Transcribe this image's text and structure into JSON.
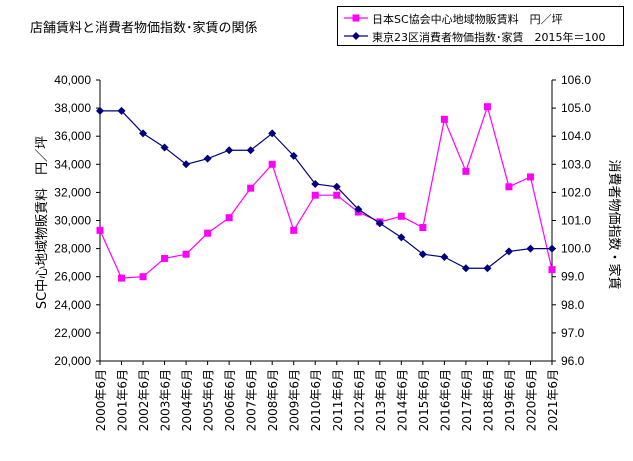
{
  "chart_data": {
    "type": "line",
    "title": "店舗賃料と消費者物価指数･家賃の関係",
    "categories": [
      "2000年6月",
      "2001年6月",
      "2002年6月",
      "2003年6月",
      "2004年6月",
      "2005年6月",
      "2006年6月",
      "2007年6月",
      "2008年6月",
      "2009年6月",
      "2010年6月",
      "2011年6月",
      "2012年6月",
      "2013年6月",
      "2014年6月",
      "2015年6月",
      "2016年6月",
      "2017年6月",
      "2018年6月",
      "2019年6月",
      "2020年6月",
      "2021年6月"
    ],
    "series": [
      {
        "name": "日本SC協会中心地域物販賃料　円／坪",
        "axis": "left",
        "color": "#ff00ff",
        "marker": "square",
        "values": [
          29300,
          25900,
          26000,
          27300,
          27600,
          29100,
          30200,
          32300,
          34000,
          29300,
          31800,
          31800,
          30600,
          29900,
          30300,
          29500,
          37200,
          33500,
          38100,
          32400,
          33100,
          26500
        ]
      },
      {
        "name": "東京23区消費者物価指数･家賃　2015年＝100",
        "axis": "right",
        "color": "#000080",
        "marker": "diamond",
        "values": [
          104.9,
          104.9,
          104.1,
          103.6,
          103.0,
          103.2,
          103.5,
          103.5,
          104.1,
          103.3,
          102.3,
          102.2,
          101.4,
          100.9,
          100.4,
          99.8,
          99.7,
          99.3,
          99.3,
          99.9,
          100.0,
          100.0
        ]
      }
    ],
    "left_axis": {
      "label": "SC中心地域物販賃料　円／坪",
      "ylim": [
        20000,
        40000
      ],
      "ticks": [
        "20,000",
        "22,000",
        "24,000",
        "26,000",
        "28,000",
        "30,000",
        "32,000",
        "34,000",
        "36,000",
        "38,000",
        "40,000"
      ]
    },
    "right_axis": {
      "label": "消費者物価指数・家賃",
      "ylim": [
        96.0,
        106.0
      ],
      "ticks": [
        "96.0",
        "97.0",
        "98.0",
        "99.0",
        "100.0",
        "101.0",
        "102.0",
        "103.0",
        "104.0",
        "105.0",
        "106.0"
      ]
    },
    "grid": false,
    "legend_position": "top-right"
  }
}
